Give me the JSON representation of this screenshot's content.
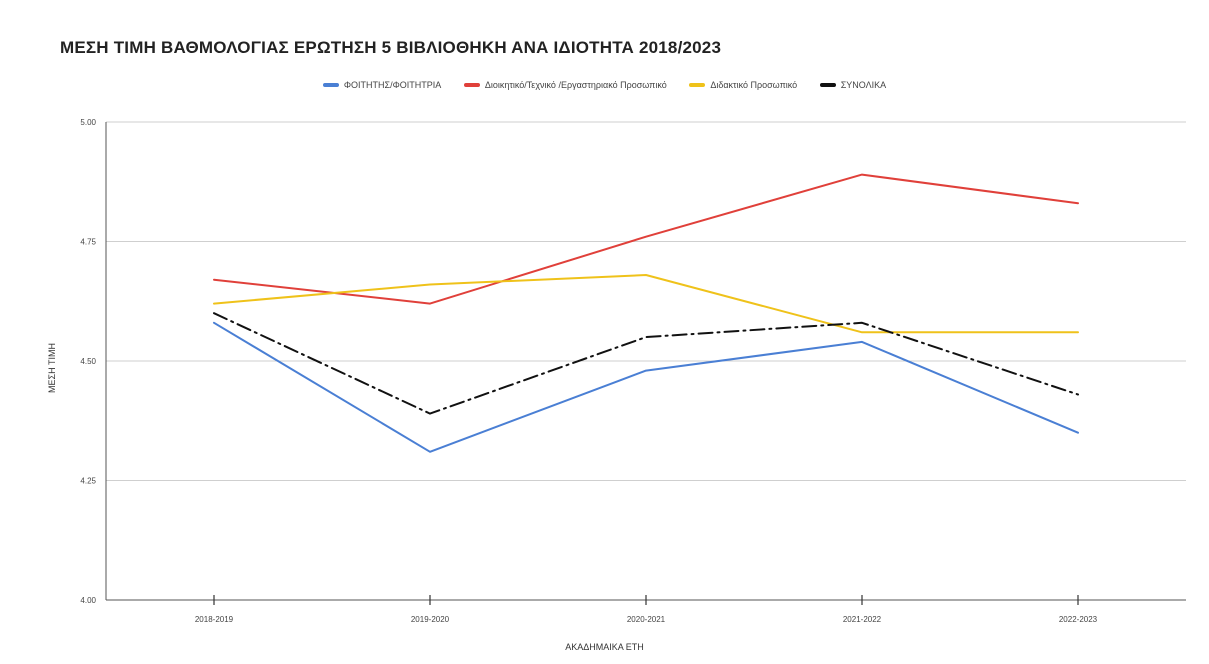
{
  "chart_data": {
    "type": "line",
    "title": "ΜΕΣΗ ΤΙΜΗ ΒΑΘΜΟΛΟΓΙΑΣ ΕΡΩΤΗΣΗ 5 ΒΙΒΛΙΟΘΗΚΗ ΑΝΑ ΙΔΙΟΤΗΤΑ 2018/2023",
    "xlabel": "ΑΚΑΔΗΜΑΙΚΑ ΕΤΗ",
    "ylabel": "ΜΕΣΗ ΤΙΜΗ",
    "categories": [
      "2018-2019",
      "2019-2020",
      "2020-2021",
      "2021-2022",
      "2022-2023"
    ],
    "ylim": [
      4.0,
      5.0
    ],
    "yticks": [
      "4.00",
      "4.25",
      "4.50",
      "4.75",
      "5.00"
    ],
    "grid": true,
    "legend_position": "top",
    "series": [
      {
        "name": "ΦΟΙΤΗΤΗΣ/ΦΟΙΤΗΤΡΙΑ",
        "values": [
          4.58,
          4.31,
          4.48,
          4.54,
          4.35
        ],
        "color": "#4a7fd4",
        "dash": "solid"
      },
      {
        "name": "Διοικητικό/Τεχνικό /Εργαστηριακό Προσωπικό",
        "values": [
          4.67,
          4.62,
          4.76,
          4.89,
          4.83
        ],
        "color": "#e0403a",
        "dash": "solid"
      },
      {
        "name": "Διδακτικό Προσωπικό",
        "values": [
          4.62,
          4.66,
          4.68,
          4.56,
          4.56
        ],
        "color": "#efc21a",
        "dash": "solid"
      },
      {
        "name": "ΣΥΝΟΛΙΚΑ",
        "values": [
          4.6,
          4.39,
          4.55,
          4.58,
          4.43
        ],
        "color": "#111111",
        "dash": "dashdot"
      }
    ]
  }
}
